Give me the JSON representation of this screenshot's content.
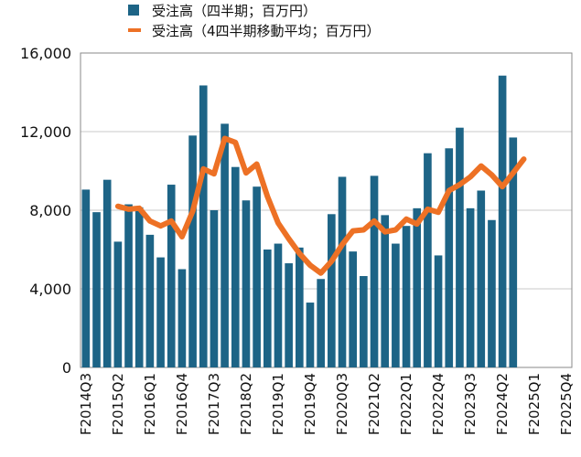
{
  "colors": {
    "bar": "#1d6486",
    "line": "#ed7125",
    "grid": "#c8c8c8",
    "frame": "#8a8a8a",
    "text": "#111111"
  },
  "legend": {
    "bar_label": "受注高（四半期；百万円）",
    "line_label": "受注高（4四半期移動平均；百万円）"
  },
  "chart_data": {
    "type": "bar",
    "ylim": [
      0,
      16000
    ],
    "yticks": [
      {
        "value": 0,
        "label": "0"
      },
      {
        "value": 4000,
        "label": "4,000"
      },
      {
        "value": 8000,
        "label": "8,000"
      },
      {
        "value": 12000,
        "label": "12,000"
      },
      {
        "value": 16000,
        "label": "16,000"
      }
    ],
    "grid": true,
    "legend_position": "top",
    "categories": [
      "F2014Q3",
      "F2014Q4",
      "F2015Q1",
      "F2015Q2",
      "F2015Q3",
      "F2015Q4",
      "F2016Q1",
      "F2016Q2",
      "F2016Q3",
      "F2016Q4",
      "F2017Q1",
      "F2017Q2",
      "F2017Q3",
      "F2017Q4",
      "F2018Q1",
      "F2018Q2",
      "F2018Q3",
      "F2018Q4",
      "F2019Q1",
      "F2019Q2",
      "F2019Q3",
      "F2019Q4",
      "F2020Q1",
      "F2020Q2",
      "F2020Q3",
      "F2020Q4",
      "F2021Q1",
      "F2021Q2",
      "F2021Q3",
      "F2021Q4",
      "F2022Q1",
      "F2022Q2",
      "F2022Q3",
      "F2022Q4",
      "F2023Q1",
      "F2023Q2",
      "F2023Q3",
      "F2023Q4",
      "F2024Q1",
      "F2024Q2",
      "F2024Q3",
      "F2024Q4",
      "F2025Q1",
      "F2025Q2",
      "F2025Q3",
      "F2025Q4"
    ],
    "tick_labels": [
      "F2014Q3",
      "F2015Q2",
      "F2016Q1",
      "F2016Q4",
      "F2017Q3",
      "F2018Q2",
      "F2019Q1",
      "F2019Q4",
      "F2020Q3",
      "F2021Q2",
      "F2022Q1",
      "F2022Q4",
      "F2023Q3",
      "F2024Q2",
      "F2025Q1",
      "F2025Q4"
    ],
    "series": [
      {
        "name": "受注高（四半期；百万円）",
        "kind": "bar",
        "values": [
          9050,
          7900,
          9550,
          6400,
          8300,
          8150,
          6750,
          5600,
          9300,
          5000,
          11800,
          14350,
          8000,
          12400,
          10200,
          8500,
          9200,
          6000,
          6300,
          5300,
          6100,
          3300,
          4500,
          7800,
          9700,
          5900,
          4650,
          9750,
          7750,
          6300,
          7200,
          8100,
          10900,
          5700,
          11150,
          12200,
          8100,
          9000,
          7500,
          14850,
          11700,
          null,
          null,
          null,
          null,
          null
        ]
      },
      {
        "name": "受注高（4四半期移動平均；百万円）",
        "kind": "line",
        "values": [
          null,
          null,
          null,
          8200,
          8050,
          8100,
          7450,
          7200,
          7450,
          6650,
          7950,
          10100,
          9850,
          11650,
          11450,
          9900,
          10350,
          8700,
          7350,
          6550,
          5800,
          5200,
          4800,
          5400,
          6250,
          6950,
          7000,
          7450,
          6900,
          7000,
          7550,
          7300,
          8050,
          7900,
          9000,
          9300,
          9700,
          10250,
          9800,
          9200,
          9900,
          10600,
          null,
          null,
          null,
          null
        ]
      }
    ]
  }
}
